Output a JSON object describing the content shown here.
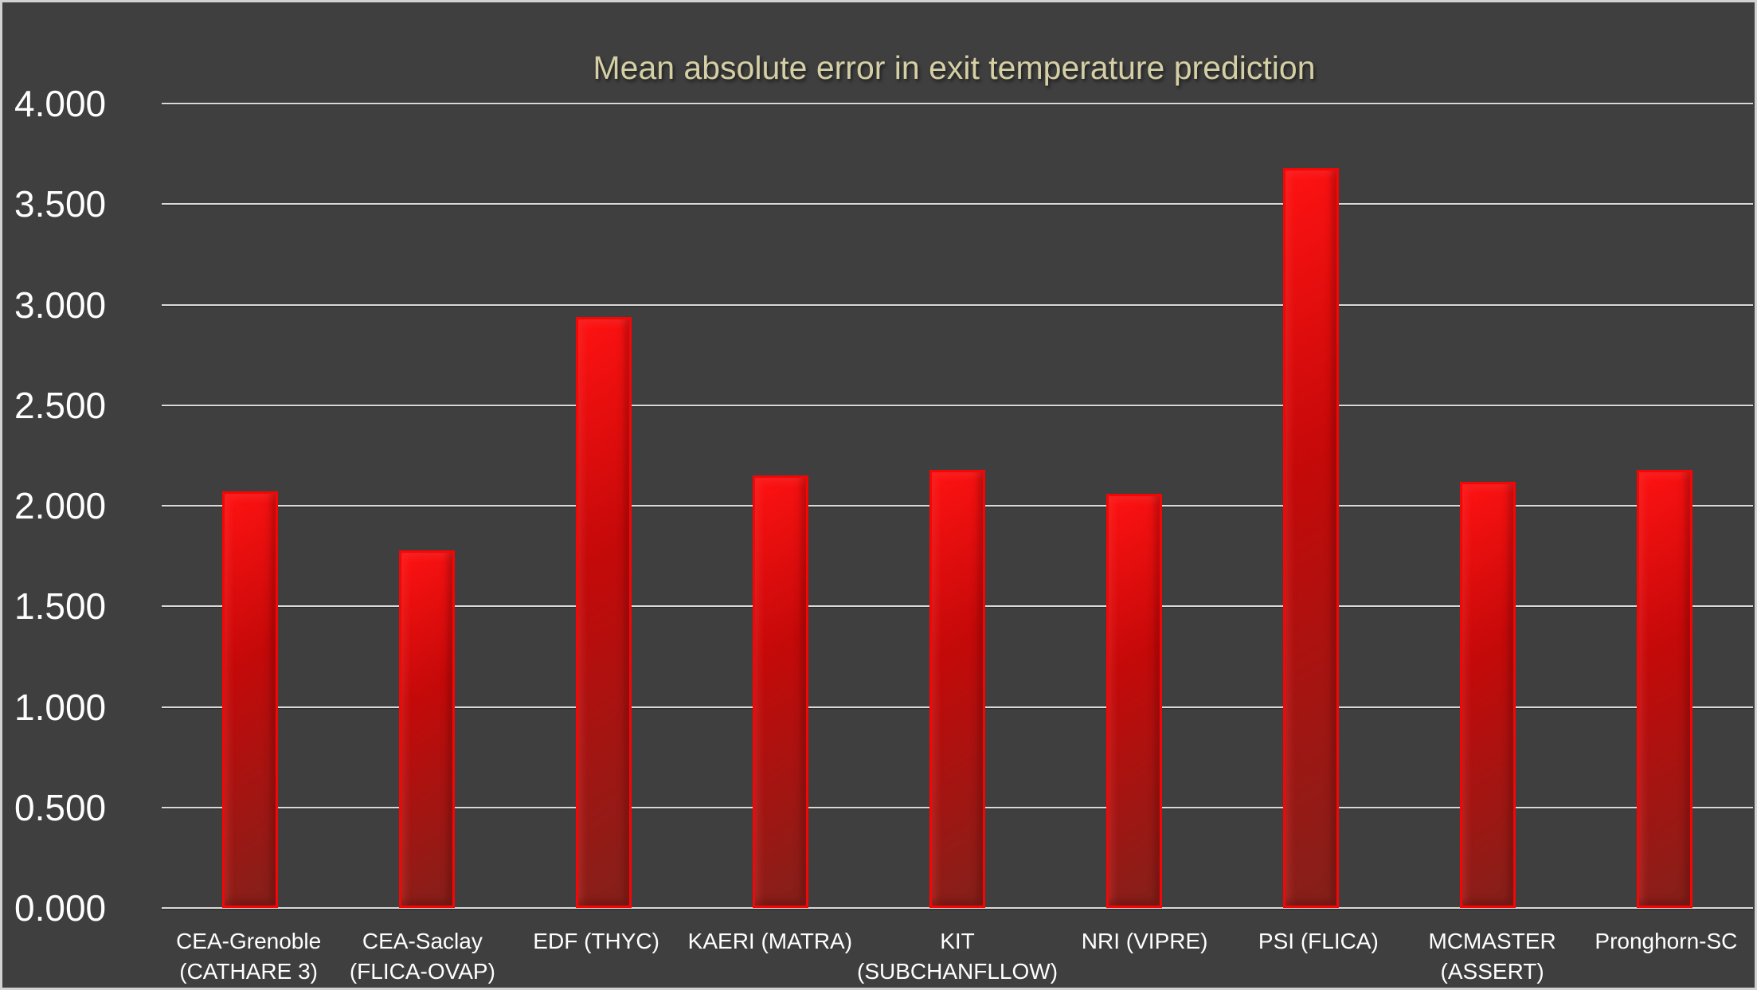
{
  "window": {
    "background_color": "#3f3f3f",
    "frame_border_color": "#d2d2d2"
  },
  "chart_data": {
    "type": "bar",
    "title": "Mean absolute error in exit temperature prediction",
    "categories": [
      "CEA-Grenoble (CATHARE 3)",
      "CEA-Saclay (FLICA-OVAP)",
      "EDF (THYC)",
      "KAERI (MATRA)",
      "KIT (SUBCHANFLLOW)",
      "NRI (VIPRE)",
      "PSI (FLICA)",
      "MCMASTER (ASSERT)",
      "Pronghorn-SC"
    ],
    "values": [
      2.07,
      1.78,
      2.94,
      2.15,
      2.18,
      2.06,
      3.68,
      2.12,
      2.18
    ],
    "xlabel": "",
    "ylabel": "",
    "ylim": [
      0,
      4
    ],
    "ytick_values": [
      0,
      0.5,
      1,
      1.5,
      2,
      2.5,
      3,
      3.5,
      4
    ],
    "ytick_labels": [
      "0.000",
      "0.500",
      "1.000",
      "1.500",
      "2.000",
      "2.500",
      "3.000",
      "3.500",
      "4.000"
    ],
    "grid": true,
    "legend": false,
    "colors": {
      "title": "#d5cfa5",
      "tick_labels": "#ffffff",
      "gridline": "#d9d9d9",
      "bar_fill_top": "#ff1212",
      "bar_fill_mid": "#c50909",
      "bar_fill_bottom": "#84201a",
      "bar_border": "#f60505"
    }
  }
}
